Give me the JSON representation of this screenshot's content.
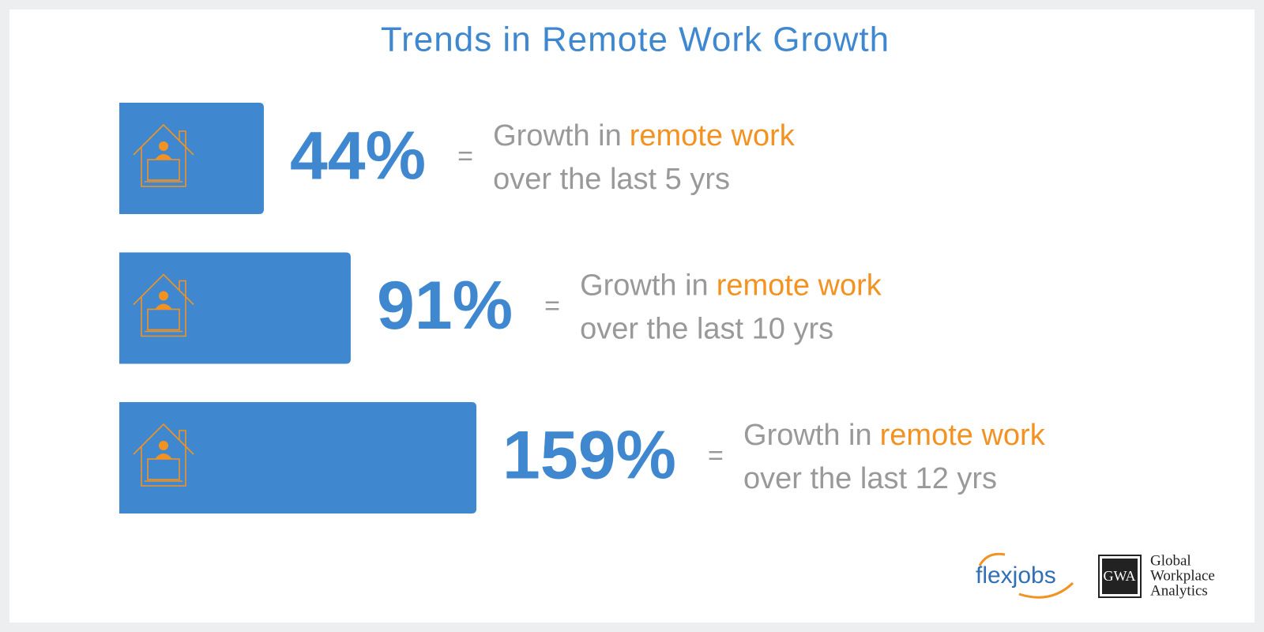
{
  "chart_data": {
    "type": "bar",
    "orientation": "horizontal",
    "title": "Trends in Remote Work Growth",
    "values": [
      44,
      91,
      159
    ],
    "value_labels": [
      "44%",
      "91%",
      "159%"
    ],
    "color": "#3f88d0",
    "separator": "=",
    "descriptions": [
      {
        "prefix": "Growth in",
        "highlight": "remote work",
        "suffix": "over the last 5 yrs"
      },
      {
        "prefix": "Growth in",
        "highlight": "remote work",
        "suffix": "over the last 10 yrs"
      },
      {
        "prefix": "Growth in",
        "highlight": "remote work",
        "suffix": "over the last 12 yrs"
      }
    ],
    "highlight_color": "#f39220"
  },
  "logos": {
    "flexjobs": "flexjobs",
    "gwa_monogram": "GWA",
    "gwa_name": [
      "Global",
      "Workplace",
      "Analytics"
    ]
  }
}
